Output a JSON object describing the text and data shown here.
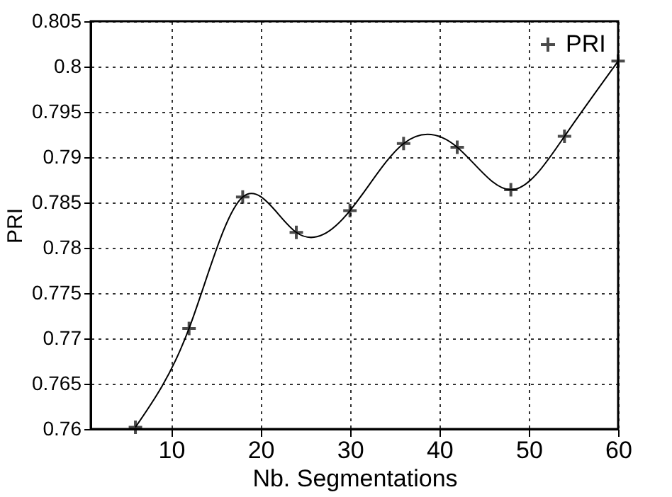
{
  "chart_data": {
    "type": "scatter",
    "xlabel": "Nb. Segmentations",
    "ylabel": "PRI",
    "x": [
      6,
      12,
      18,
      24,
      30,
      36,
      42,
      48,
      54,
      60
    ],
    "series": [
      {
        "name": "PRI",
        "type": "scatter",
        "color": "#000000",
        "marker": "cross",
        "values": [
          0.7602,
          0.7711,
          0.7856,
          0.7817,
          0.7841,
          0.7915,
          0.7911,
          0.7864,
          0.7923,
          0.8006
        ]
      },
      {
        "type": "line",
        "color": "#000000",
        "line_style": "solid",
        "marker": "none",
        "values": [
          0.7602,
          0.7711,
          0.7856,
          0.7817,
          0.7841,
          0.7915,
          0.7911,
          0.7864,
          0.7923,
          0.8006
        ]
      }
    ],
    "xlim": [
      1,
      60
    ],
    "xticks": [
      10,
      20,
      30,
      40,
      50,
      60
    ],
    "ylim": [
      0.76,
      0.805
    ],
    "yticks": [
      0.76,
      0.765,
      0.77,
      0.775,
      0.78,
      0.785,
      0.79,
      0.795,
      0.8,
      0.805
    ],
    "grid": true,
    "legend": "top right"
  }
}
